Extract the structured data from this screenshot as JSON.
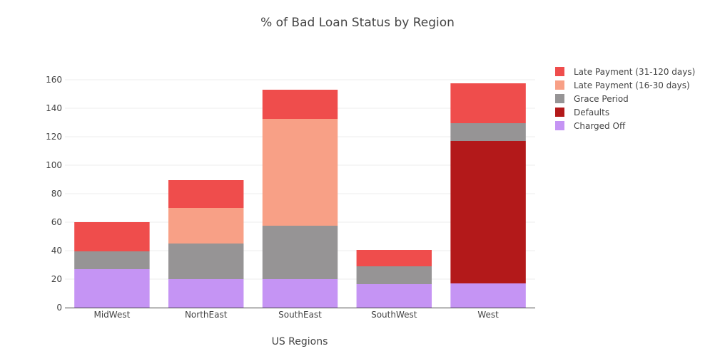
{
  "chart_data": {
    "type": "bar",
    "stacked": true,
    "title": "% of Bad Loan Status by Region",
    "xlabel": "US Regions",
    "ylabel": "",
    "ylim": [
      0,
      166
    ],
    "yticks": [
      0,
      20,
      40,
      60,
      80,
      100,
      120,
      140,
      160
    ],
    "grid": true,
    "legend_position": "right",
    "categories": [
      "MidWest",
      "NorthEast",
      "SouthEast",
      "SouthWest",
      "West"
    ],
    "series": [
      {
        "name": "Charged Off",
        "color": "#c594f4",
        "values": [
          27,
          20,
          20,
          16.5,
          17
        ]
      },
      {
        "name": "Defaults",
        "color": "#b3191a",
        "values": [
          0,
          0,
          0,
          0,
          100
        ]
      },
      {
        "name": "Grace Period",
        "color": "#969495",
        "values": [
          12.5,
          25,
          37.5,
          12.5,
          12.5
        ]
      },
      {
        "name": "Late Payment (16-30 days)",
        "color": "#f8a086",
        "values": [
          0,
          25,
          75,
          0,
          0
        ]
      },
      {
        "name": "Late Payment (31-120 days)",
        "color": "#ef4d4c",
        "values": [
          20.5,
          19.5,
          20.5,
          11.5,
          28
        ]
      }
    ],
    "legend_order": [
      "Late Payment (31-120 days)",
      "Late Payment (16-30 days)",
      "Grace Period",
      "Defaults",
      "Charged Off"
    ]
  }
}
